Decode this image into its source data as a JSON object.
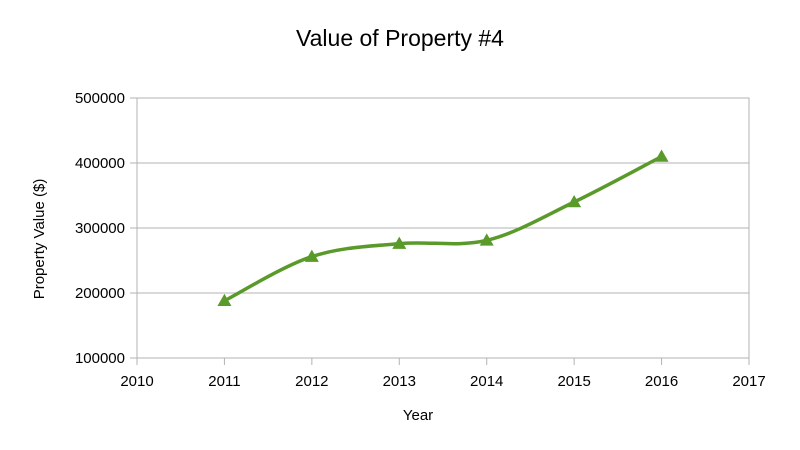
{
  "chart_data": {
    "type": "line",
    "title": "Value of Property #4",
    "xlabel": "Year",
    "ylabel": "Property Value ($)",
    "xlim": [
      2010,
      2017
    ],
    "ylim": [
      100000,
      500000
    ],
    "x_ticks": [
      "2010",
      "2011",
      "2012",
      "2013",
      "2014",
      "2015",
      "2016",
      "2017"
    ],
    "y_ticks": [
      "100000",
      "200000",
      "300000",
      "400000",
      "500000"
    ],
    "grid": true,
    "legend": "none",
    "smoothed": true,
    "marker": "triangle",
    "series": [
      {
        "color": "#5a9a2a",
        "x": [
          2011,
          2012,
          2013,
          2014,
          2015,
          2016
        ],
        "y": [
          188000,
          256000,
          276000,
          281000,
          340000,
          410000
        ]
      }
    ]
  }
}
